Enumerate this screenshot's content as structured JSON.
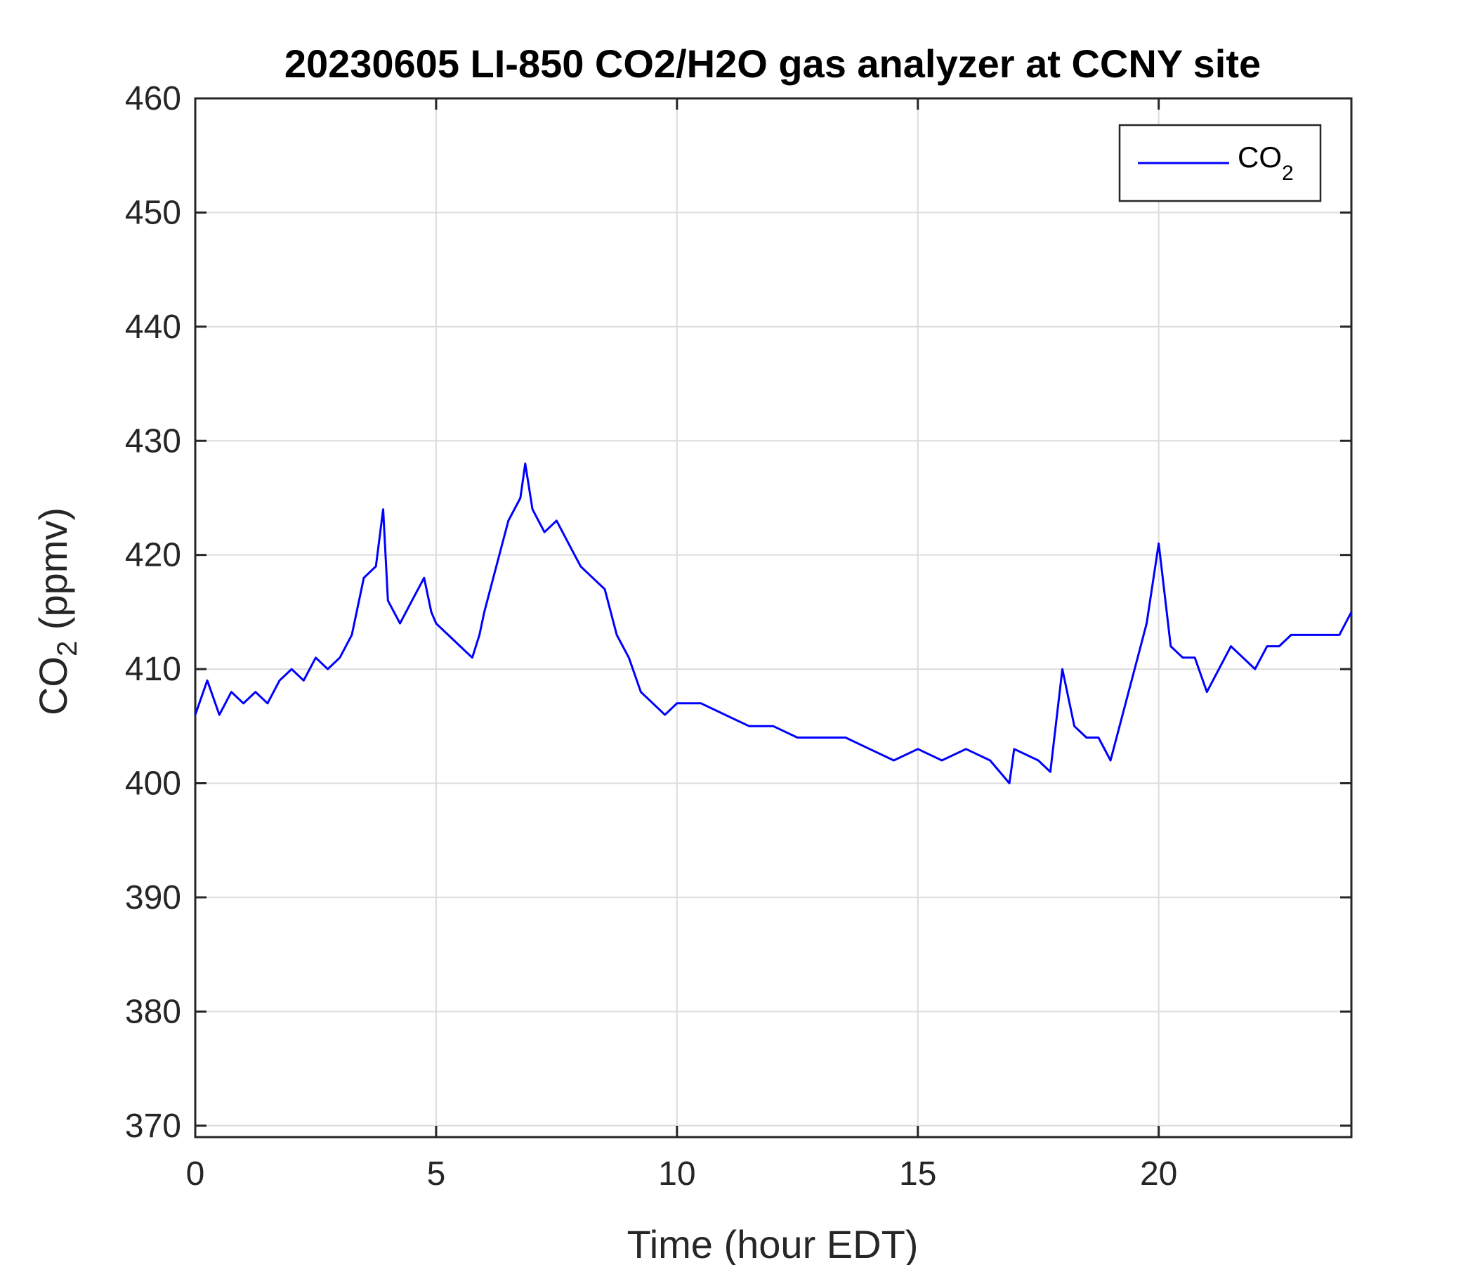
{
  "chart_data": {
    "type": "line",
    "title": "20230605 LI-850 CO2/H2O gas analyzer at CCNY site",
    "xlabel": "Time (hour EDT)",
    "ylabel_main": "CO",
    "ylabel_sub": "2",
    "ylabel_rest": " (ppmv)",
    "xlim": [
      0,
      24
    ],
    "ylim": [
      369,
      460
    ],
    "xticks": [
      0,
      5,
      10,
      15,
      20
    ],
    "yticks": [
      370,
      380,
      390,
      400,
      410,
      420,
      430,
      440,
      450,
      460
    ],
    "grid": true,
    "legend_position": "top-right",
    "legend": {
      "main": "CO",
      "sub": "2"
    },
    "series": [
      {
        "name": "CO2",
        "color": "#0000ff",
        "x": [
          0,
          0.25,
          0.5,
          0.75,
          1,
          1.25,
          1.5,
          1.75,
          2,
          2.25,
          2.5,
          2.75,
          3,
          3.25,
          3.5,
          3.75,
          3.9,
          4,
          4.25,
          4.5,
          4.75,
          4.9,
          5,
          5.25,
          5.5,
          5.75,
          5.9,
          6,
          6.25,
          6.5,
          6.75,
          6.85,
          7,
          7.25,
          7.5,
          7.75,
          8,
          8.25,
          8.5,
          8.75,
          9,
          9.25,
          9.5,
          9.75,
          10,
          10.5,
          11,
          11.5,
          12,
          12.5,
          13,
          13.5,
          14,
          14.5,
          15,
          15.5,
          16,
          16.5,
          16.9,
          17,
          17.5,
          17.75,
          18,
          18.25,
          18.5,
          18.75,
          19,
          19.25,
          19.5,
          19.75,
          20,
          20.25,
          20.5,
          20.75,
          21,
          21.25,
          21.5,
          21.75,
          22,
          22.25,
          22.5,
          22.75,
          23,
          23.25,
          23.5,
          23.75,
          24
        ],
        "y": [
          406,
          409,
          406,
          408,
          407,
          408,
          407,
          409,
          410,
          409,
          411,
          410,
          411,
          413,
          418,
          419,
          424,
          416,
          414,
          416,
          418,
          415,
          414,
          413,
          412,
          411,
          413,
          415,
          419,
          423,
          425,
          428,
          424,
          422,
          423,
          421,
          419,
          418,
          417,
          413,
          411,
          408,
          407,
          406,
          407,
          407,
          406,
          405,
          405,
          404,
          404,
          404,
          403,
          402,
          403,
          402,
          403,
          402,
          400,
          403,
          402,
          401,
          410,
          405,
          404,
          404,
          402,
          406,
          410,
          414,
          421,
          412,
          411,
          411,
          408,
          410,
          412,
          411,
          410,
          412,
          412,
          413,
          413,
          413,
          413,
          413,
          415
        ]
      }
    ]
  }
}
